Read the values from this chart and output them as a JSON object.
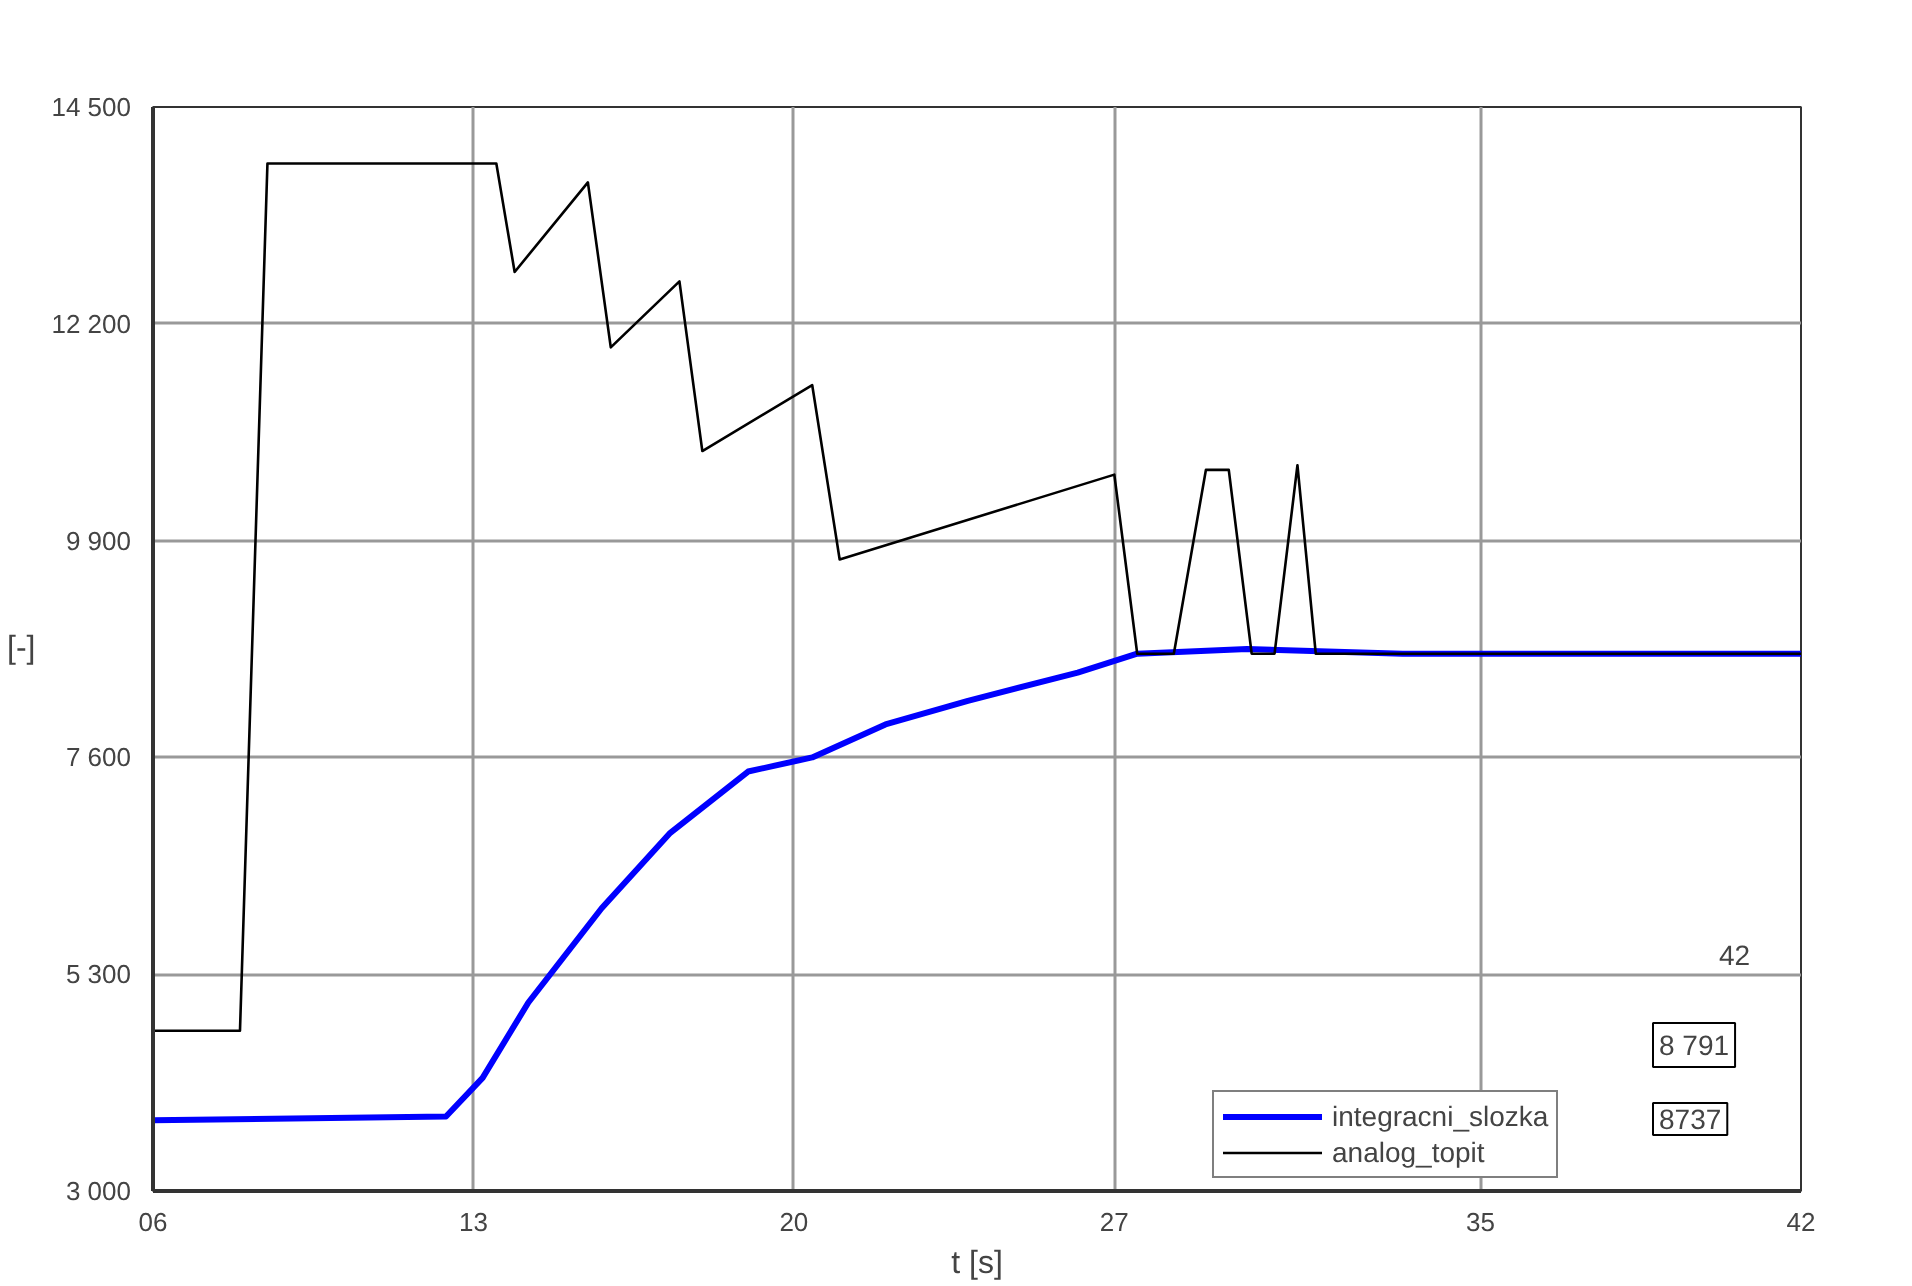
{
  "chart_data": {
    "type": "line",
    "xlabel": "t [s]",
    "ylabel": "[-]",
    "xlim": [
      6,
      42
    ],
    "ylim": [
      3000,
      14500
    ],
    "xticks": [
      {
        "value": 6,
        "label": "06"
      },
      13,
      20,
      27,
      35,
      42
    ],
    "yticks": [
      {
        "value": 3000,
        "label": "3 000"
      },
      {
        "value": 5300,
        "label": "5 300"
      },
      {
        "value": 7600,
        "label": "7 600"
      },
      {
        "value": 9900,
        "label": "9 900"
      },
      {
        "value": 12200,
        "label": "12 200"
      },
      {
        "value": 14500,
        "label": "14 500"
      }
    ],
    "grid": true,
    "legend": "bottom right",
    "line_style": "solid",
    "marker": "none",
    "series": [
      {
        "name": "integracni_slozka",
        "color": "#0000ff",
        "x": [
          6,
          12.4,
          13.2,
          14.2,
          15.8,
          17.3,
          19,
          20.4,
          22,
          23.8,
          26.2,
          27.5,
          29.9,
          33.3,
          42
        ],
        "values": [
          3750,
          3790,
          4200,
          5000,
          6000,
          6800,
          7450,
          7600,
          7950,
          8200,
          8500,
          8700,
          8750,
          8700,
          8700
        ]
      },
      {
        "name": "analog_topit",
        "color": "#000000",
        "x": [
          6,
          7.9,
          8.5,
          13.5,
          13.9,
          15.5,
          16,
          17.5,
          18,
          20.4,
          21,
          27,
          27.5,
          28.3,
          29,
          29.5,
          30,
          30.5,
          31,
          31.4,
          42
        ],
        "values": [
          4700,
          4700,
          13900,
          13900,
          12750,
          13700,
          11950,
          12650,
          10850,
          11550,
          9700,
          10600,
          8700,
          8700,
          10650,
          10650,
          8700,
          8700,
          10700,
          8700,
          8700
        ]
      }
    ],
    "annotations": [
      "42",
      "8 791",
      "8737"
    ]
  }
}
